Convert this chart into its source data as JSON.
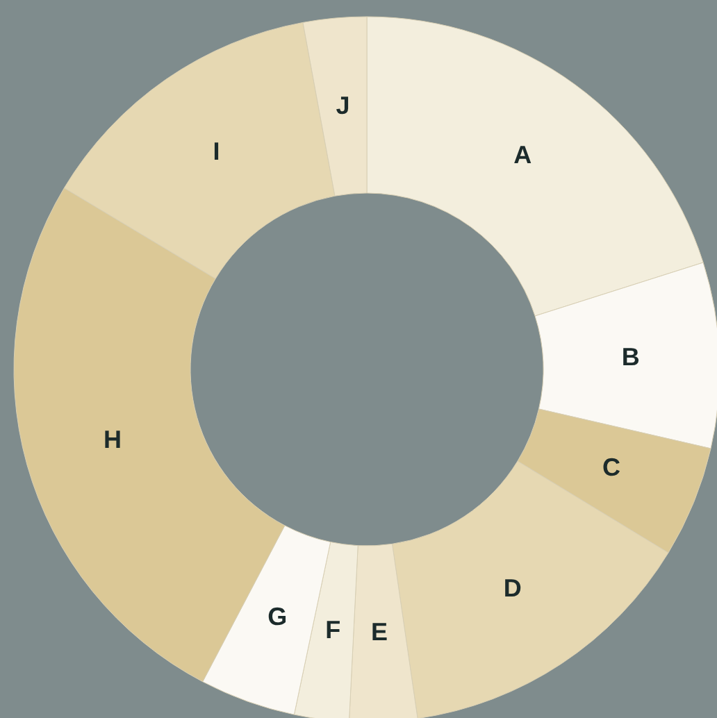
{
  "chart_data": {
    "type": "donut",
    "categories": [
      "A",
      "B",
      "C",
      "D",
      "E",
      "F",
      "G",
      "H",
      "I",
      "J"
    ],
    "values": [
      20.1,
      8.5,
      5.1,
      14.0,
      3.1,
      2.5,
      4.4,
      25.9,
      13.5,
      2.9
    ],
    "colors": [
      "#f3eedd",
      "#fbf9f4",
      "#dbc896",
      "#e6d8b2",
      "#efe5cc",
      "#f3eedd",
      "#fbf9f4",
      "#dbc896",
      "#e6d8b2",
      "#efe5cc"
    ]
  }
}
